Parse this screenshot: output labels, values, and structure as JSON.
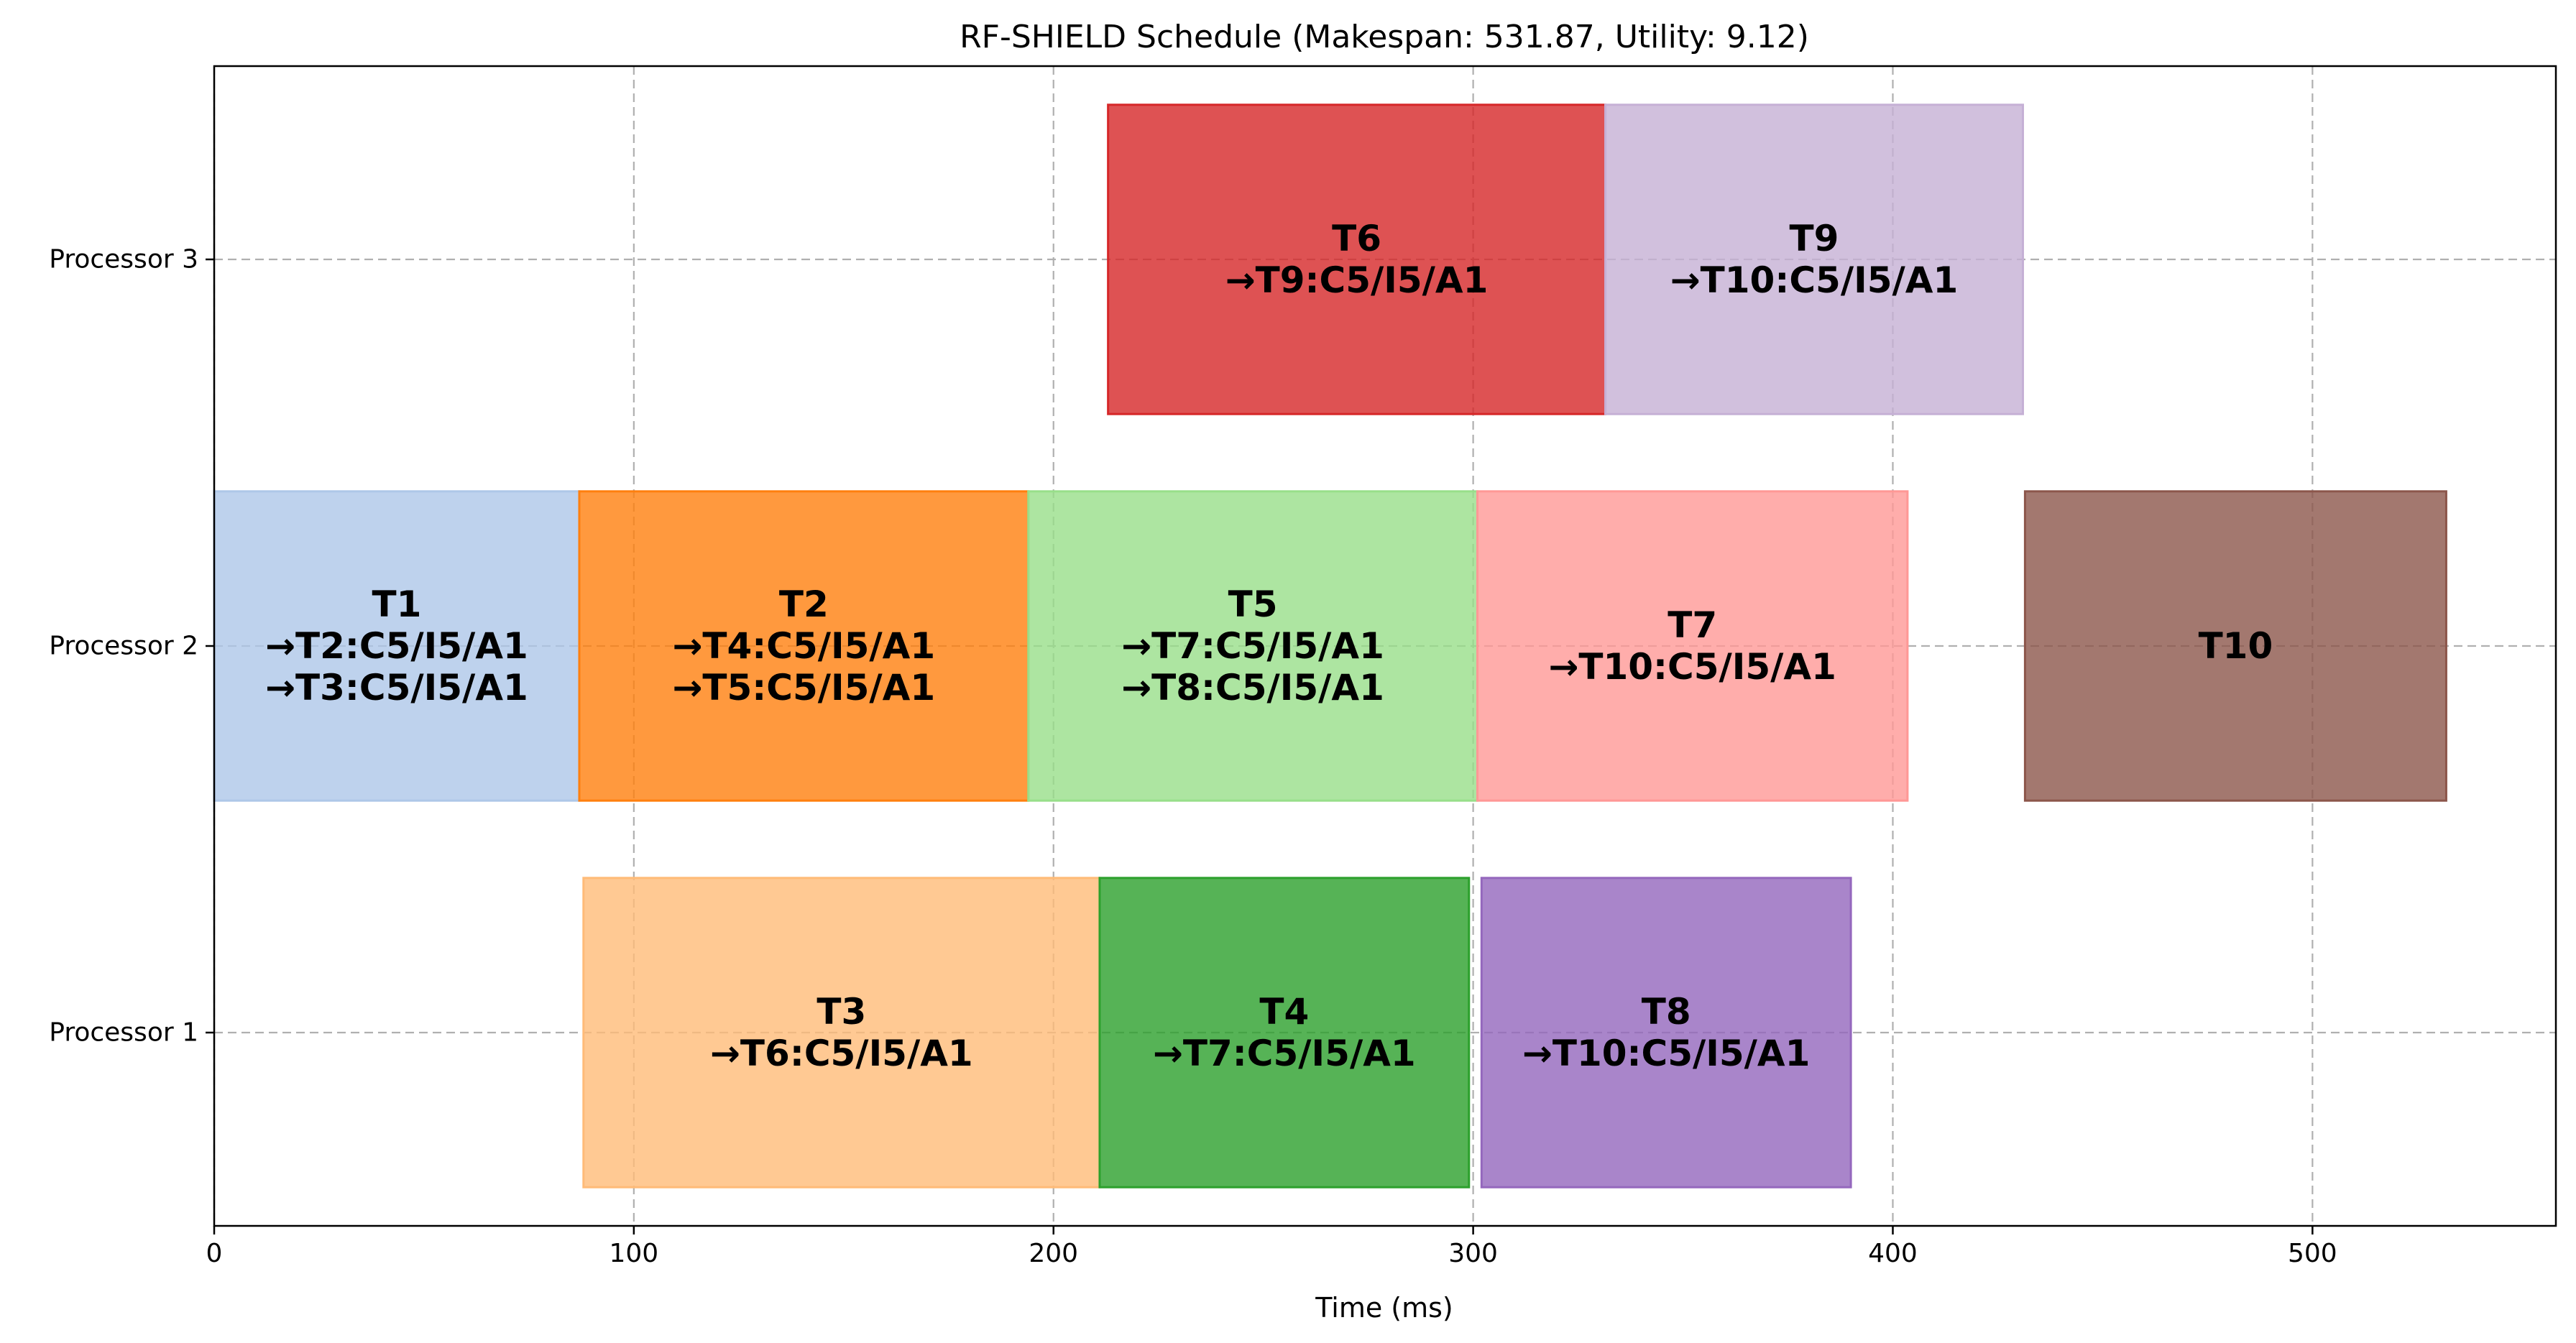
{
  "chart_data": {
    "type": "gantt",
    "title": "RF-SHIELD Schedule (Makespan: 531.87, Utility: 9.12)",
    "xlabel": "Time (ms)",
    "ylabel": "",
    "xlim": [
      0,
      558
    ],
    "xticks": [
      0,
      100,
      200,
      300,
      400,
      500
    ],
    "grid": true,
    "categories": [
      "Processor 1",
      "Processor 2",
      "Processor 3"
    ],
    "tasks": [
      {
        "name": "T1",
        "processor": 2,
        "start": 0,
        "end": 87,
        "color": "#aec7e8",
        "alpha": 0.8,
        "lines": [
          "→T2:C5/I5/A1",
          "→T3:C5/I5/A1"
        ]
      },
      {
        "name": "T2",
        "processor": 2,
        "start": 87,
        "end": 194,
        "color": "#ff7f0e",
        "alpha": 0.8,
        "lines": [
          "→T4:C5/I5/A1",
          "→T5:C5/I5/A1"
        ]
      },
      {
        "name": "T5",
        "processor": 2,
        "start": 194,
        "end": 301,
        "color": "#98df8a",
        "alpha": 0.8,
        "lines": [
          "→T7:C5/I5/A1",
          "→T8:C5/I5/A1"
        ]
      },
      {
        "name": "T7",
        "processor": 2,
        "start": 301,
        "end": 403.5,
        "color": "#ff9896",
        "alpha": 0.8,
        "lines": [
          "→T10:C5/I5/A1"
        ]
      },
      {
        "name": "T10",
        "processor": 2,
        "start": 431.5,
        "end": 531.87,
        "color": "#8c564b",
        "alpha": 0.8,
        "lines": []
      },
      {
        "name": "T3",
        "processor": 1,
        "start": 88,
        "end": 211,
        "color": "#ffbb78",
        "alpha": 0.8,
        "lines": [
          "→T6:C5/I5/A1"
        ]
      },
      {
        "name": "T4",
        "processor": 1,
        "start": 211,
        "end": 299,
        "color": "#2ca02c",
        "alpha": 0.8,
        "lines": [
          "→T7:C5/I5/A1"
        ]
      },
      {
        "name": "T8",
        "processor": 1,
        "start": 302,
        "end": 390,
        "color": "#9467bd",
        "alpha": 0.8,
        "lines": [
          "→T10:C5/I5/A1"
        ]
      },
      {
        "name": "T6",
        "processor": 3,
        "start": 213,
        "end": 331.5,
        "color": "#d62728",
        "alpha": 0.8,
        "lines": [
          "→T9:C5/I5/A1"
        ]
      },
      {
        "name": "T9",
        "processor": 3,
        "start": 331.5,
        "end": 431,
        "color": "#c5b0d5",
        "alpha": 0.8,
        "lines": [
          "→T10:C5/I5/A1"
        ]
      }
    ]
  }
}
